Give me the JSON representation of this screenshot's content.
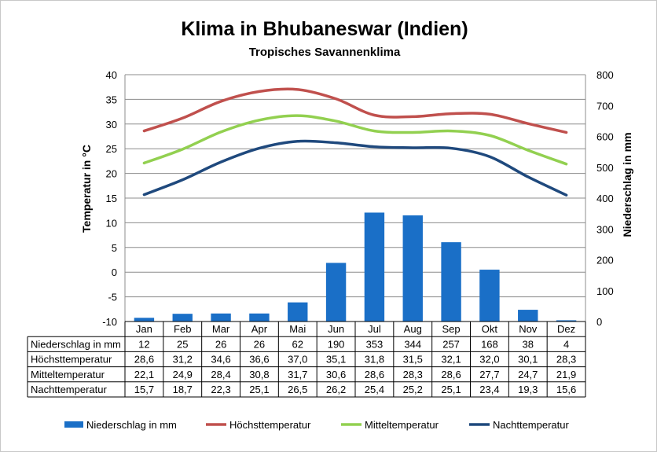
{
  "chart_data": {
    "type": "bar",
    "title": "Klima in Bhubaneswar (Indien)",
    "subtitle": "Tropisches Savannenklima",
    "ylabel": "Temperatur in °C",
    "y2label": "Niederschlag in mm",
    "ylim": [
      -10,
      40
    ],
    "y2lim": [
      0,
      800
    ],
    "yticks": [
      "40",
      "35",
      "30",
      "25",
      "20",
      "15",
      "10",
      "5",
      "0",
      "-5",
      "-10"
    ],
    "y2ticks": [
      "800",
      "700",
      "600",
      "500",
      "400",
      "300",
      "200",
      "100",
      "0"
    ],
    "categories": [
      "Jan",
      "Feb",
      "Mar",
      "Apr",
      "Mai",
      "Jun",
      "Jul",
      "Aug",
      "Sep",
      "Okt",
      "Nov",
      "Dez"
    ],
    "grid": true,
    "legend_position": "bottom",
    "series": [
      {
        "name": "Niederschlag in mm",
        "type": "bar",
        "axis": "right",
        "color": "#1a6fc7",
        "values": [
          12,
          25,
          26,
          26,
          62,
          190,
          353,
          344,
          257,
          168,
          38,
          4
        ],
        "labels": [
          "12",
          "25",
          "26",
          "26",
          "62",
          "190",
          "353",
          "344",
          "257",
          "168",
          "38",
          "4"
        ]
      },
      {
        "name": "Höchsttemperatur",
        "type": "line",
        "axis": "left",
        "color": "#c0504d",
        "values": [
          28.6,
          31.2,
          34.6,
          36.6,
          37.0,
          35.1,
          31.8,
          31.5,
          32.1,
          32.0,
          30.1,
          28.3
        ],
        "labels": [
          "28,6",
          "31,2",
          "34,6",
          "36,6",
          "37,0",
          "35,1",
          "31,8",
          "31,5",
          "32,1",
          "32,0",
          "30,1",
          "28,3"
        ]
      },
      {
        "name": "Mitteltemperatur",
        "type": "line",
        "axis": "left",
        "color": "#92d050",
        "values": [
          22.1,
          24.9,
          28.4,
          30.8,
          31.7,
          30.6,
          28.6,
          28.3,
          28.6,
          27.7,
          24.7,
          21.9
        ],
        "labels": [
          "22,1",
          "24,9",
          "28,4",
          "30,8",
          "31,7",
          "30,6",
          "28,6",
          "28,3",
          "28,6",
          "27,7",
          "24,7",
          "21,9"
        ]
      },
      {
        "name": "Nachttemperatur",
        "type": "line",
        "axis": "left",
        "color": "#1f497d",
        "values": [
          15.7,
          18.7,
          22.3,
          25.1,
          26.5,
          26.2,
          25.4,
          25.2,
          25.1,
          23.4,
          19.3,
          15.6
        ],
        "labels": [
          "15,7",
          "18,7",
          "22,3",
          "25,1",
          "26,5",
          "26,2",
          "25,4",
          "25,2",
          "25,1",
          "23,4",
          "19,3",
          "15,6"
        ]
      }
    ]
  }
}
